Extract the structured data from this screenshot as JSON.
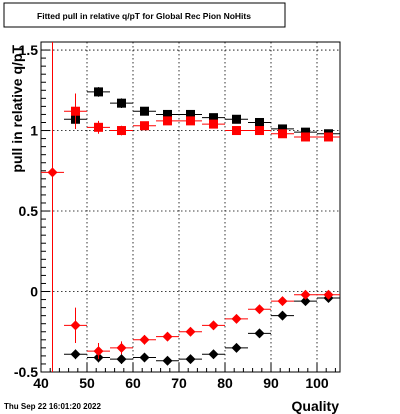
{
  "chart_data": {
    "type": "scatter",
    "title": "Fitted pull in relative q/pT for Global Rec Pion NoHits",
    "xlabel": "Quality",
    "ylabel": "pull in relative q/pT",
    "xlim": [
      40,
      105
    ],
    "ylim": [
      -0.5,
      1.55
    ],
    "grid": true,
    "x_ticks": [
      40,
      50,
      60,
      70,
      80,
      90,
      100
    ],
    "y_ticks": [
      -0.5,
      0,
      0.5,
      1,
      1.5
    ],
    "y_tick_labels": [
      "-0.5",
      "0",
      "0.5",
      "1",
      "1.5"
    ],
    "footer": "Thu Sep 22 16:01:20 2022",
    "series": [
      {
        "marker": "square",
        "color": "#000000",
        "points": [
          {
            "x": 47.5,
            "y": 1.07,
            "ey": 0.06
          },
          {
            "x": 52.5,
            "y": 1.24,
            "ey": 0.03
          },
          {
            "x": 57.5,
            "y": 1.17,
            "ey": 0.03
          },
          {
            "x": 62.5,
            "y": 1.12,
            "ey": 0.02
          },
          {
            "x": 67.5,
            "y": 1.1,
            "ey": 0.02
          },
          {
            "x": 72.5,
            "y": 1.1,
            "ey": 0.02
          },
          {
            "x": 77.5,
            "y": 1.08,
            "ey": 0.02
          },
          {
            "x": 82.5,
            "y": 1.07,
            "ey": 0.02
          },
          {
            "x": 87.5,
            "y": 1.05,
            "ey": 0.02
          },
          {
            "x": 92.5,
            "y": 1.01,
            "ey": 0.02
          },
          {
            "x": 97.5,
            "y": 0.99,
            "ey": 0.01
          },
          {
            "x": 102.5,
            "y": 0.98,
            "ey": 0.01
          }
        ]
      },
      {
        "marker": "square",
        "color": "#ff0000",
        "points": [
          {
            "x": 47.5,
            "y": 1.12,
            "ey": 0.11
          },
          {
            "x": 52.5,
            "y": 1.02,
            "ey": 0.04
          },
          {
            "x": 57.5,
            "y": 1.0,
            "ey": 0.03
          },
          {
            "x": 62.5,
            "y": 1.03,
            "ey": 0.02
          },
          {
            "x": 67.5,
            "y": 1.06,
            "ey": 0.02
          },
          {
            "x": 72.5,
            "y": 1.06,
            "ey": 0.02
          },
          {
            "x": 77.5,
            "y": 1.04,
            "ey": 0.02
          },
          {
            "x": 82.5,
            "y": 1.0,
            "ey": 0.02
          },
          {
            "x": 87.5,
            "y": 1.0,
            "ey": 0.02
          },
          {
            "x": 92.5,
            "y": 0.98,
            "ey": 0.01
          },
          {
            "x": 97.5,
            "y": 0.96,
            "ey": 0.01
          },
          {
            "x": 102.5,
            "y": 0.96,
            "ey": 0.01
          }
        ]
      },
      {
        "marker": "diamond",
        "color": "#000000",
        "points": [
          {
            "x": 47.5,
            "y": -0.39,
            "ey": 0.03
          },
          {
            "x": 52.5,
            "y": -0.41,
            "ey": 0.03
          },
          {
            "x": 57.5,
            "y": -0.42,
            "ey": 0.03
          },
          {
            "x": 62.5,
            "y": -0.41,
            "ey": 0.02
          },
          {
            "x": 67.5,
            "y": -0.43,
            "ey": 0.02
          },
          {
            "x": 72.5,
            "y": -0.42,
            "ey": 0.02
          },
          {
            "x": 77.5,
            "y": -0.39,
            "ey": 0.02
          },
          {
            "x": 82.5,
            "y": -0.35,
            "ey": 0.02
          },
          {
            "x": 87.5,
            "y": -0.26,
            "ey": 0.02
          },
          {
            "x": 92.5,
            "y": -0.15,
            "ey": 0.02
          },
          {
            "x": 97.5,
            "y": -0.06,
            "ey": 0.02
          },
          {
            "x": 102.5,
            "y": -0.04,
            "ey": 0.01
          }
        ]
      },
      {
        "marker": "diamond",
        "color": "#ff0000",
        "points": [
          {
            "x": 42.5,
            "y": 0.74,
            "ey": 1.25
          },
          {
            "x": 47.5,
            "y": -0.21,
            "ey": 0.11
          },
          {
            "x": 52.5,
            "y": -0.37,
            "ey": 0.05
          },
          {
            "x": 57.5,
            "y": -0.35,
            "ey": 0.04
          },
          {
            "x": 62.5,
            "y": -0.3,
            "ey": 0.03
          },
          {
            "x": 67.5,
            "y": -0.28,
            "ey": 0.02
          },
          {
            "x": 72.5,
            "y": -0.25,
            "ey": 0.02
          },
          {
            "x": 77.5,
            "y": -0.21,
            "ey": 0.02
          },
          {
            "x": 82.5,
            "y": -0.17,
            "ey": 0.02
          },
          {
            "x": 87.5,
            "y": -0.11,
            "ey": 0.02
          },
          {
            "x": 92.5,
            "y": -0.06,
            "ey": 0.02
          },
          {
            "x": 97.5,
            "y": -0.02,
            "ey": 0.01
          },
          {
            "x": 102.5,
            "y": -0.02,
            "ey": 0.01
          }
        ]
      }
    ]
  }
}
